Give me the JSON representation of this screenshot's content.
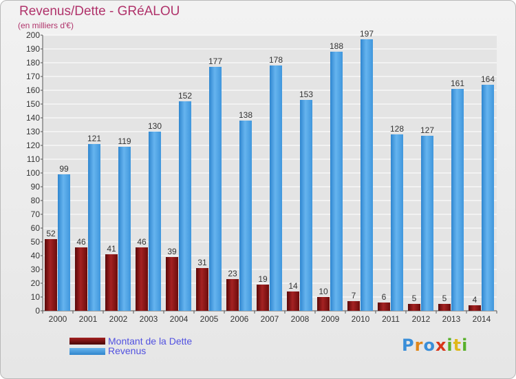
{
  "chart_data": {
    "type": "bar",
    "title": "Revenus/Dette - GRéALOU",
    "subtitle": "(en milliers d'€)",
    "categories": [
      "2000",
      "2001",
      "2002",
      "2003",
      "2004",
      "2005",
      "2006",
      "2007",
      "2008",
      "2009",
      "2010",
      "2011",
      "2012",
      "2013",
      "2014"
    ],
    "series": [
      {
        "name": "Montant de la Dette",
        "color": "#7a1010",
        "values": [
          52,
          46,
          41,
          46,
          39,
          31,
          23,
          19,
          14,
          10,
          7,
          6,
          5,
          5,
          4
        ]
      },
      {
        "name": "Revenus",
        "color": "#4da3e3",
        "values": [
          99,
          121,
          119,
          130,
          152,
          177,
          138,
          178,
          153,
          188,
          197,
          128,
          127,
          161,
          164
        ]
      }
    ],
    "ylim": [
      0,
      200
    ],
    "ytick_step": 10,
    "grid": true,
    "legend_position": "bottom-left"
  },
  "brand": {
    "logo_letters": [
      "P",
      "r",
      "o",
      "x",
      "i",
      "t",
      "i"
    ]
  }
}
